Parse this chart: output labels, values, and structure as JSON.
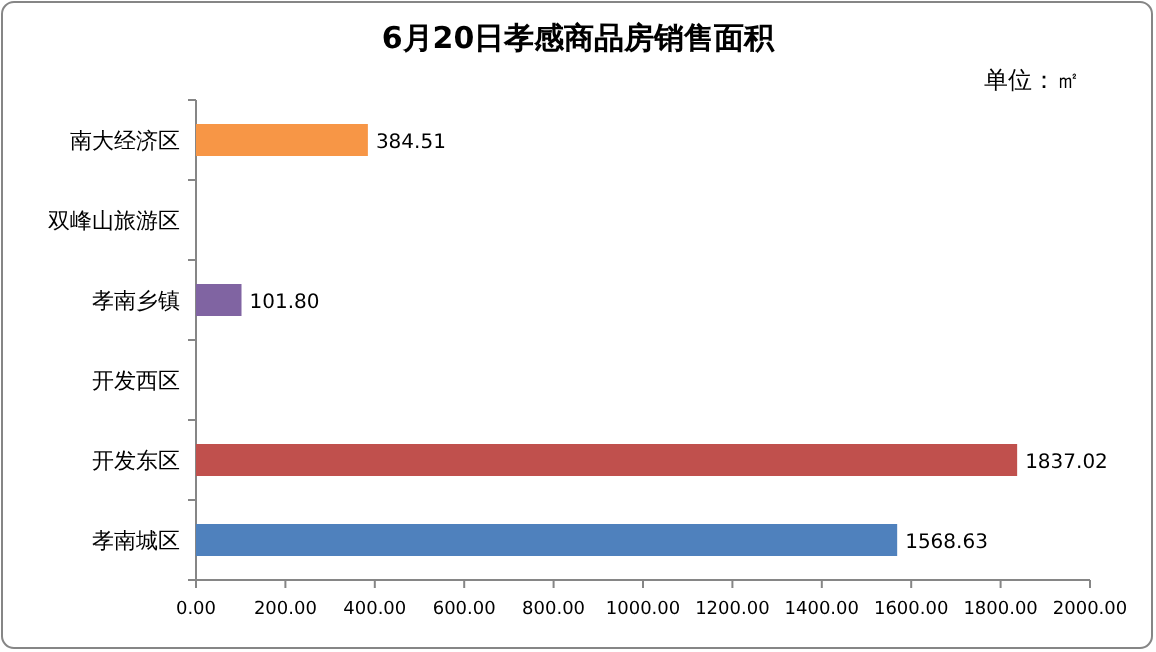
{
  "chart_data": {
    "type": "bar",
    "orientation": "horizontal",
    "title": "6月20日孝感商品房销售面积",
    "annotations": [
      "单位：㎡"
    ],
    "categories": [
      "南大经济区",
      "双峰山旅游区",
      "孝南乡镇",
      "开发西区",
      "开发东区",
      "孝南城区"
    ],
    "values": [
      384.51,
      null,
      101.8,
      null,
      1837.02,
      1568.63
    ],
    "colors": [
      "#f79646",
      null,
      "#8064a2",
      null,
      "#c0504d",
      "#4f81bd"
    ],
    "value_labels": [
      "384.51",
      null,
      "101.80",
      null,
      "1837.02",
      "1568.63"
    ],
    "xlim": [
      0,
      2000
    ],
    "xticks": [
      {
        "value": 0,
        "label": "0.00"
      },
      {
        "value": 200,
        "label": "200.00"
      },
      {
        "value": 400,
        "label": "400.00"
      },
      {
        "value": 600,
        "label": "600.00"
      },
      {
        "value": 800,
        "label": "800.00"
      },
      {
        "value": 1000,
        "label": "1000.00"
      },
      {
        "value": 1200,
        "label": "1200.00"
      },
      {
        "value": 1400,
        "label": "1400.00"
      },
      {
        "value": 1600,
        "label": "1600.00"
      },
      {
        "value": 1800,
        "label": "1800.00"
      },
      {
        "value": 2000,
        "label": "2000.00"
      }
    ],
    "grid": false
  }
}
